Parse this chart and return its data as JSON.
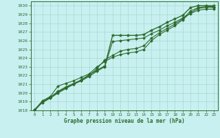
{
  "title": "Graphe pression niveau de la mer (hPa)",
  "background_color": "#c8f0f0",
  "grid_color": "#a8d8d0",
  "line_color": "#2d6a2d",
  "xlim": [
    -0.5,
    23.5
  ],
  "ylim": [
    1018,
    1030.5
  ],
  "xticks": [
    0,
    1,
    2,
    3,
    4,
    5,
    6,
    7,
    8,
    9,
    10,
    11,
    12,
    13,
    14,
    15,
    16,
    17,
    18,
    19,
    20,
    21,
    22,
    23
  ],
  "yticks": [
    1018,
    1019,
    1020,
    1021,
    1022,
    1023,
    1024,
    1025,
    1026,
    1027,
    1028,
    1029,
    1030
  ],
  "series": [
    {
      "y": [
        1018.0,
        1019.0,
        1019.5,
        1020.1,
        1020.6,
        1021.0,
        1021.5,
        1022.1,
        1022.6,
        1023.1,
        1026.6,
        1026.6,
        1026.6,
        1026.6,
        1026.7,
        1027.2,
        1027.6,
        1028.1,
        1028.5,
        1028.9,
        1029.8,
        1030.0,
        1030.0,
        1030.0
      ],
      "marker": "*",
      "ms": 3.5,
      "lw": 1.0,
      "zorder": 5
    },
    {
      "y": [
        1018.1,
        1018.9,
        1019.4,
        1020.0,
        1020.5,
        1021.0,
        1021.4,
        1021.9,
        1022.5,
        1023.0,
        1025.9,
        1026.0,
        1026.1,
        1026.2,
        1026.3,
        1026.8,
        1027.2,
        1027.7,
        1028.1,
        1028.6,
        1029.1,
        1029.5,
        1029.6,
        1029.6
      ],
      "marker": "D",
      "ms": 2.0,
      "lw": 0.8,
      "zorder": 4
    },
    {
      "y": [
        1018.0,
        1019.0,
        1019.5,
        1020.2,
        1020.7,
        1021.1,
        1021.5,
        1022.0,
        1022.8,
        1023.8,
        1024.3,
        1024.8,
        1025.0,
        1025.1,
        1025.4,
        1026.3,
        1026.9,
        1027.4,
        1027.9,
        1028.5,
        1029.4,
        1029.8,
        1029.9,
        1029.9
      ],
      "marker": "D",
      "ms": 2.0,
      "lw": 0.8,
      "zorder": 3
    },
    {
      "y": [
        1018.1,
        1019.1,
        1019.6,
        1020.8,
        1021.1,
        1021.4,
        1021.8,
        1022.2,
        1023.0,
        1023.6,
        1024.1,
        1024.4,
        1024.6,
        1024.7,
        1025.0,
        1026.0,
        1026.7,
        1027.2,
        1027.7,
        1028.4,
        1029.2,
        1029.7,
        1029.8,
        1029.8
      ],
      "marker": "D",
      "ms": 2.0,
      "lw": 0.8,
      "zorder": 2
    }
  ]
}
